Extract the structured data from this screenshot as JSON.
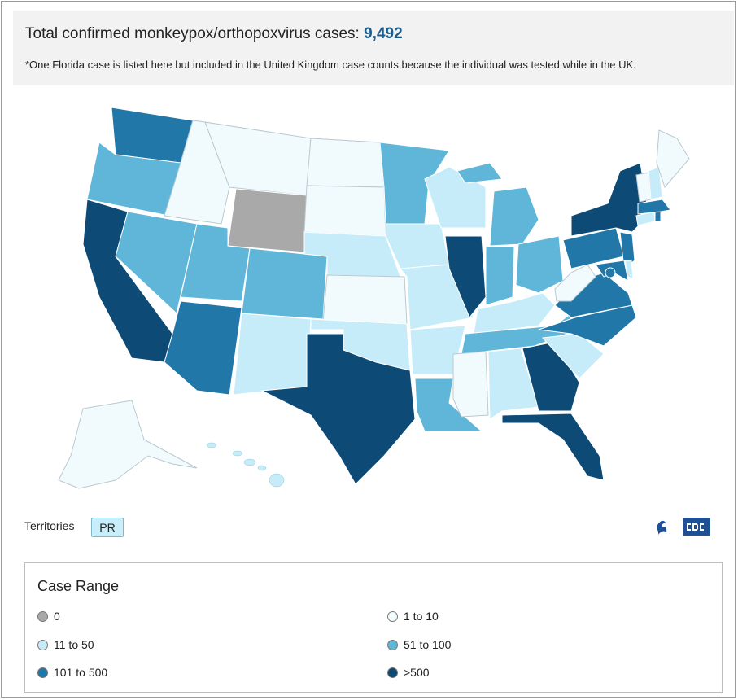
{
  "header": {
    "title_prefix": "Total confirmed monkeypox/orthopoxvirus cases:",
    "total_count": "9,492",
    "note": "*One Florida case is listed here but included in the United Kingdom case counts because the individual was tested while in the UK."
  },
  "territories": {
    "label": "Territories",
    "items": [
      "PR"
    ]
  },
  "legend": {
    "title": "Case Range",
    "items": [
      {
        "label": "0",
        "color": "#a9a9a9"
      },
      {
        "label": "1 to 10",
        "color": "#f1fbfe"
      },
      {
        "label": "11 to 50",
        "color": "#c6ecf9"
      },
      {
        "label": "51 to 100",
        "color": "#5fb6d8"
      },
      {
        "label": "101 to 500",
        "color": "#2178a8"
      },
      {
        "label": ">500",
        "color": "#0d4a75"
      }
    ]
  },
  "colors": {
    "zero": "#a9a9a9",
    "r1": "#f1fbfe",
    "r2": "#c6ecf9",
    "r3": "#5fb6d8",
    "r4": "#2178a8",
    "r5": "#0d4a75"
  },
  "state_categories": {
    "WA": "101 to 500",
    "OR": "51 to 100",
    "CA": ">500",
    "NV": "51 to 100",
    "ID": "1 to 10",
    "MT": "1 to 10",
    "WY": "0",
    "UT": "51 to 100",
    "AZ": "101 to 500",
    "CO": "51 to 100",
    "NM": "11 to 50",
    "ND": "1 to 10",
    "SD": "1 to 10",
    "NE": "11 to 50",
    "KS": "1 to 10",
    "OK": "11 to 50",
    "TX": ">500",
    "MN": "51 to 100",
    "IA": "11 to 50",
    "MO": "11 to 50",
    "AR": "11 to 50",
    "LA": "51 to 100",
    "WI": "11 to 50",
    "IL": ">500",
    "MI": "51 to 100",
    "IN": "51 to 100",
    "OH": "51 to 100",
    "KY": "11 to 50",
    "TN": "51 to 100",
    "MS": "1 to 10",
    "AL": "11 to 50",
    "GA": ">500",
    "FL": ">500",
    "SC": "11 to 50",
    "NC": "101 to 500",
    "VA": "101 to 500",
    "WV": "1 to 10",
    "PA": "101 to 500",
    "NY": ">500",
    "NJ": "101 to 500",
    "MD": "101 to 500",
    "DE": "11 to 50",
    "DC": "101 to 500",
    "CT": "11 to 50",
    "RI": "101 to 500",
    "MA": "101 to 500",
    "VT": "1 to 10",
    "NH": "11 to 50",
    "ME": "1 to 10",
    "AK": "1 to 10",
    "HI": "11 to 50"
  }
}
